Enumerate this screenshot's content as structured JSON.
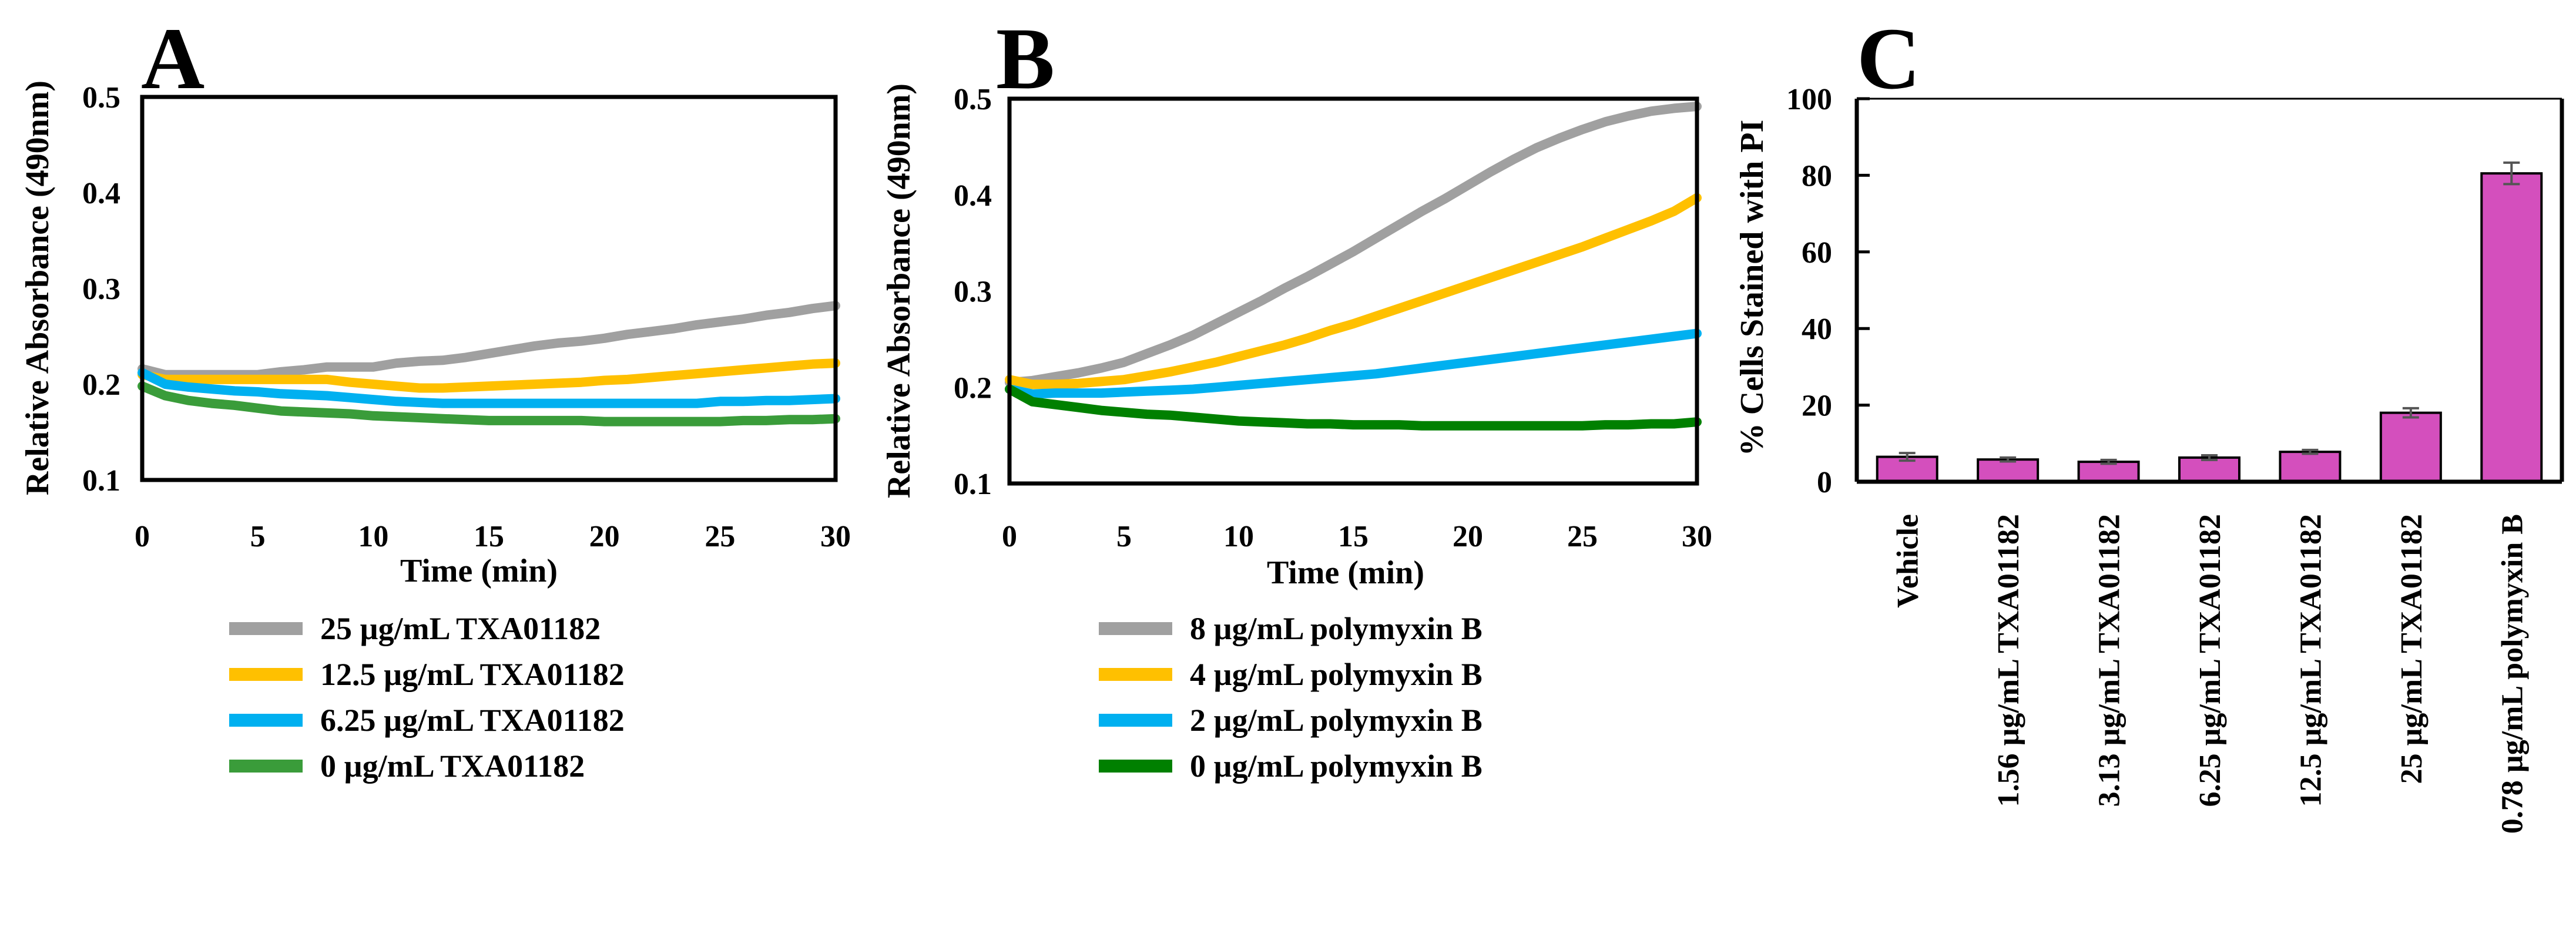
{
  "panels": {
    "A": {
      "letter": "A",
      "xlabel": "Time (min)",
      "ylabel": "Relative Absorbance (490nm)",
      "x_ticks": [
        "0",
        "5",
        "10",
        "15",
        "20",
        "25",
        "30"
      ],
      "y_ticks": [
        "0.1",
        "0.2",
        "0.3",
        "0.4",
        "0.5"
      ]
    },
    "B": {
      "letter": "B",
      "xlabel": "Time (min)",
      "ylabel": "Relative Absorbance (490nm)",
      "x_ticks": [
        "0",
        "5",
        "10",
        "15",
        "20",
        "25",
        "30"
      ],
      "y_ticks": [
        "0.1",
        "0.2",
        "0.3",
        "0.4",
        "0.5"
      ]
    },
    "C": {
      "letter": "C",
      "ylabel": "% Cells Stained with PI",
      "y_ticks": [
        "0",
        "20",
        "40",
        "60",
        "80",
        "100"
      ]
    }
  },
  "chart_data": [
    {
      "panel": "A",
      "type": "line",
      "xlabel": "Time (min)",
      "ylabel": "Relative Absorbance (490nm)",
      "xlim": [
        0,
        30
      ],
      "ylim": [
        0.1,
        0.5
      ],
      "x": [
        0,
        1,
        2,
        3,
        4,
        5,
        6,
        7,
        8,
        9,
        10,
        11,
        12,
        13,
        14,
        15,
        16,
        17,
        18,
        19,
        20,
        21,
        22,
        23,
        24,
        25,
        26,
        27,
        28,
        29,
        30
      ],
      "series": [
        {
          "name": "25 µg/mL TXA01182",
          "color": "#a0a0a0",
          "values": [
            0.216,
            0.21,
            0.21,
            0.21,
            0.21,
            0.21,
            0.213,
            0.215,
            0.218,
            0.218,
            0.218,
            0.222,
            0.224,
            0.225,
            0.228,
            0.232,
            0.236,
            0.24,
            0.243,
            0.245,
            0.248,
            0.252,
            0.255,
            0.258,
            0.262,
            0.265,
            0.268,
            0.272,
            0.275,
            0.279,
            0.282
          ]
        },
        {
          "name": "12.5 µg/mL TXA01182",
          "color": "#ffc000",
          "values": [
            0.21,
            0.205,
            0.205,
            0.205,
            0.205,
            0.205,
            0.205,
            0.205,
            0.205,
            0.202,
            0.2,
            0.198,
            0.196,
            0.196,
            0.197,
            0.198,
            0.199,
            0.2,
            0.201,
            0.202,
            0.204,
            0.205,
            0.207,
            0.209,
            0.211,
            0.213,
            0.215,
            0.217,
            0.219,
            0.221,
            0.222
          ]
        },
        {
          "name": "6.25 µg/mL TXA01182",
          "color": "#00b0f0",
          "values": [
            0.212,
            0.2,
            0.197,
            0.195,
            0.193,
            0.192,
            0.19,
            0.189,
            0.188,
            0.186,
            0.184,
            0.182,
            0.181,
            0.18,
            0.18,
            0.18,
            0.18,
            0.18,
            0.18,
            0.18,
            0.18,
            0.18,
            0.18,
            0.18,
            0.18,
            0.182,
            0.182,
            0.183,
            0.183,
            0.184,
            0.185
          ]
        },
        {
          "name": "0 µg/mL TXA01182",
          "color": "#3a9c3a",
          "values": [
            0.198,
            0.188,
            0.183,
            0.18,
            0.178,
            0.175,
            0.172,
            0.171,
            0.17,
            0.169,
            0.167,
            0.166,
            0.165,
            0.164,
            0.163,
            0.162,
            0.162,
            0.162,
            0.162,
            0.162,
            0.161,
            0.161,
            0.161,
            0.161,
            0.161,
            0.161,
            0.162,
            0.162,
            0.163,
            0.163,
            0.164
          ]
        }
      ]
    },
    {
      "panel": "B",
      "type": "line",
      "xlabel": "Time (min)",
      "ylabel": "Relative Absorbance (490nm)",
      "xlim": [
        0,
        30
      ],
      "ylim": [
        0.1,
        0.5
      ],
      "x": [
        0,
        1,
        2,
        3,
        4,
        5,
        6,
        7,
        8,
        9,
        10,
        11,
        12,
        13,
        14,
        15,
        16,
        17,
        18,
        19,
        20,
        21,
        22,
        23,
        24,
        25,
        26,
        27,
        28,
        29,
        30
      ],
      "series": [
        {
          "name": "8 µg/mL polymyxin B",
          "color": "#a0a0a0",
          "values": [
            0.205,
            0.207,
            0.211,
            0.215,
            0.22,
            0.226,
            0.235,
            0.244,
            0.254,
            0.266,
            0.278,
            0.29,
            0.303,
            0.315,
            0.328,
            0.341,
            0.355,
            0.369,
            0.383,
            0.396,
            0.41,
            0.424,
            0.437,
            0.449,
            0.459,
            0.468,
            0.476,
            0.482,
            0.487,
            0.49,
            0.492
          ]
        },
        {
          "name": "4 µg/mL polymyxin B",
          "color": "#ffc000",
          "values": [
            0.208,
            0.203,
            0.203,
            0.204,
            0.206,
            0.208,
            0.212,
            0.216,
            0.221,
            0.226,
            0.232,
            0.238,
            0.244,
            0.251,
            0.259,
            0.266,
            0.274,
            0.282,
            0.29,
            0.298,
            0.306,
            0.314,
            0.322,
            0.33,
            0.338,
            0.346,
            0.355,
            0.364,
            0.373,
            0.383,
            0.397
          ]
        },
        {
          "name": "2 µg/mL polymyxin B",
          "color": "#00b0f0",
          "values": [
            0.198,
            0.193,
            0.194,
            0.194,
            0.194,
            0.195,
            0.196,
            0.197,
            0.198,
            0.2,
            0.202,
            0.204,
            0.206,
            0.208,
            0.21,
            0.212,
            0.214,
            0.217,
            0.22,
            0.223,
            0.226,
            0.229,
            0.232,
            0.235,
            0.238,
            0.241,
            0.244,
            0.247,
            0.25,
            0.253,
            0.256
          ]
        },
        {
          "name": "0 µg/mL polymyxin B",
          "color": "#008000",
          "values": [
            0.198,
            0.185,
            0.182,
            0.179,
            0.176,
            0.174,
            0.172,
            0.171,
            0.169,
            0.167,
            0.165,
            0.164,
            0.163,
            0.162,
            0.162,
            0.161,
            0.161,
            0.161,
            0.16,
            0.16,
            0.16,
            0.16,
            0.16,
            0.16,
            0.16,
            0.16,
            0.161,
            0.161,
            0.162,
            0.162,
            0.164
          ]
        }
      ]
    },
    {
      "panel": "C",
      "type": "bar",
      "ylabel": "% Cells Stained with PI",
      "ylim": [
        0,
        100
      ],
      "bar_color": "#d44fbd",
      "categories": [
        "Vehicle",
        "1.56 µg/mL TXA01182",
        "3.13 µg/mL TXA01182",
        "6.25 µg/mL TXA01182",
        "12.5 µg/mL TXA01182",
        "25 µg/mL TXA01182",
        "0.78 µg/mL polymyxin B"
      ],
      "values": [
        6.5,
        5.8,
        5.2,
        6.3,
        7.8,
        18.0,
        80.5
      ],
      "errors": [
        1.0,
        0.5,
        0.5,
        0.6,
        0.5,
        1.2,
        2.8
      ]
    }
  ]
}
